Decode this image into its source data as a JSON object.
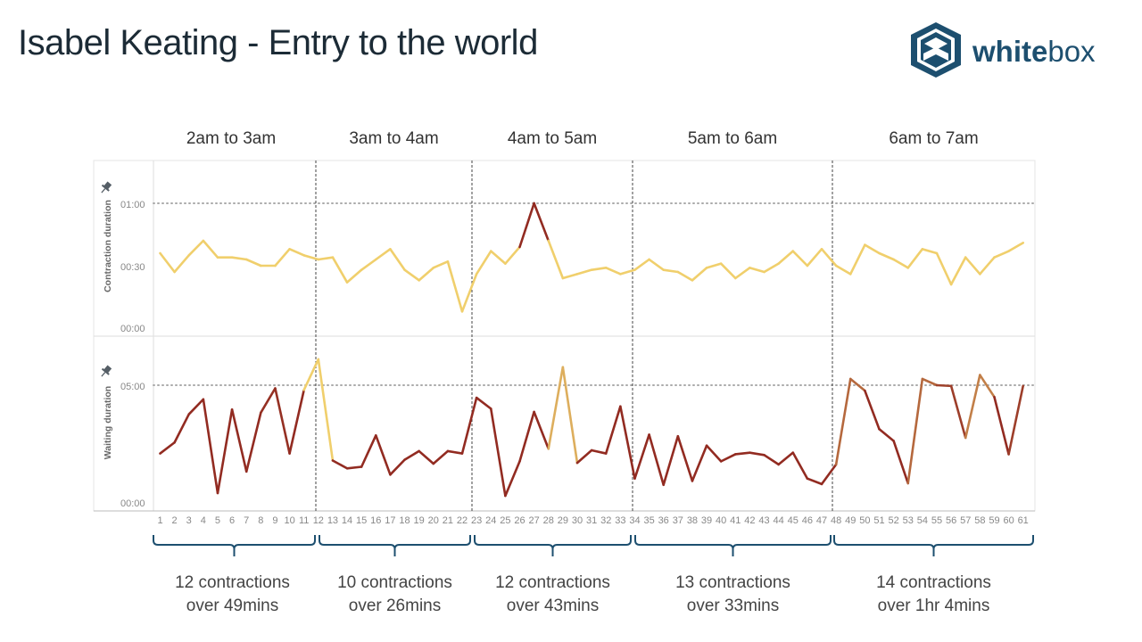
{
  "title": "Isabel Keating - Entry to the world",
  "logo": {
    "text_bold": "white",
    "text_light": "box",
    "icon": "whitebox-hexagon-logo-icon"
  },
  "colors": {
    "navy": "#1d4f6f",
    "yellow": "#f0cf6c",
    "darkred": "#922b21",
    "grid": "#cccccc",
    "text": "#555555"
  },
  "chart_data": {
    "type": "line",
    "periods": [
      {
        "label": "2am to 3am",
        "start": 1,
        "end": 12,
        "summary_line1": "12 contractions",
        "summary_line2": "over 49mins"
      },
      {
        "label": "3am to 4am",
        "start": 12,
        "end": 22,
        "summary_line1": "10 contractions",
        "summary_line2": "over 26mins"
      },
      {
        "label": "4am to 5am",
        "start": 23,
        "end": 34,
        "summary_line1": "12 contractions",
        "summary_line2": "over 43mins"
      },
      {
        "label": "5am to 6am",
        "start": 34,
        "end": 47,
        "summary_line1": "13 contractions",
        "summary_line2": "over 33mins"
      },
      {
        "label": "6am to 7am",
        "start": 48,
        "end": 61,
        "summary_line1": "14 contractions",
        "summary_line2": "over 1hr 4mins"
      }
    ],
    "x": [
      1,
      2,
      3,
      4,
      5,
      6,
      7,
      8,
      9,
      10,
      11,
      12,
      13,
      14,
      15,
      16,
      17,
      18,
      19,
      20,
      21,
      22,
      23,
      24,
      25,
      26,
      27,
      28,
      29,
      30,
      31,
      32,
      33,
      34,
      35,
      36,
      37,
      38,
      39,
      40,
      41,
      42,
      43,
      44,
      45,
      46,
      47,
      48,
      49,
      50,
      51,
      52,
      53,
      54,
      55,
      56,
      57,
      58,
      59,
      60,
      61
    ],
    "contraction": {
      "ylabel": "Contraction duration",
      "ticks": [
        "00:00",
        "00:30",
        "01:00"
      ],
      "ylim_seconds": [
        0,
        66
      ],
      "reference_seconds": 60,
      "values_seconds": [
        36,
        27,
        35,
        42,
        34,
        34,
        33,
        30,
        30,
        38,
        35,
        33,
        34,
        22,
        28,
        33,
        38,
        28,
        23,
        29,
        32,
        8,
        26,
        37,
        31,
        39,
        60,
        42,
        24,
        26,
        28,
        29,
        26,
        28,
        33,
        28,
        27,
        23,
        29,
        31,
        24,
        29,
        27,
        31,
        37,
        30,
        38,
        30,
        26,
        40,
        36,
        33,
        29,
        38,
        36,
        21,
        34,
        26,
        34,
        37,
        41
      ],
      "color_scale": "yellow to dark red by value"
    },
    "waiting": {
      "ylabel": "Waiting duration",
      "ticks": [
        "00:00",
        "05:00"
      ],
      "ylim_seconds": [
        0,
        390
      ],
      "reference_seconds": 300,
      "values_seconds": [
        126,
        154,
        226,
        264,
        25,
        238,
        80,
        230,
        292,
        126,
        288,
        366,
        108,
        88,
        92,
        172,
        72,
        110,
        132,
        100,
        132,
        126,
        268,
        240,
        18,
        106,
        232,
        138,
        346,
        102,
        134,
        126,
        246,
        62,
        174,
        46,
        170,
        56,
        146,
        106,
        124,
        128,
        122,
        98,
        128,
        62,
        48,
        98,
        316,
        286,
        188,
        158,
        50,
        316,
        300,
        298,
        166,
        326,
        270,
        124,
        298
      ],
      "color_scale": "dark red to yellow by value"
    }
  }
}
